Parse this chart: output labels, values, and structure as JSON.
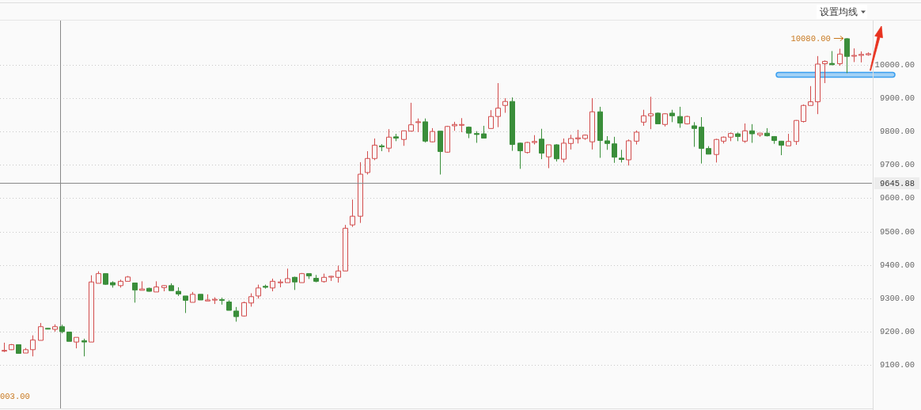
{
  "chart_data": {
    "type": "candlestick",
    "categories": [
      null,
      null,
      null,
      null,
      null,
      null,
      null,
      null,
      null,
      null,
      null,
      null,
      null,
      null,
      null,
      null,
      null,
      null,
      null,
      null,
      null,
      null,
      null,
      null,
      null,
      null,
      null,
      null,
      null,
      null,
      null,
      null,
      null,
      null,
      null,
      null,
      null,
      null,
      null,
      null,
      null,
      null,
      null,
      null,
      null,
      null,
      null,
      null,
      null,
      null,
      null,
      null,
      null,
      null,
      null,
      null,
      null,
      null,
      null,
      null,
      null,
      null,
      null,
      null,
      null,
      null,
      null,
      null,
      null,
      null,
      null,
      null,
      null,
      null,
      null,
      null,
      null,
      null,
      null,
      null,
      null,
      null,
      null,
      null,
      null,
      null,
      null,
      null,
      null,
      null,
      null,
      null,
      null,
      null,
      null,
      null,
      null,
      null,
      null,
      null,
      null,
      null,
      null,
      null,
      null,
      null,
      null,
      null,
      null,
      null,
      null,
      null,
      null,
      null,
      null,
      null,
      null,
      null,
      null,
      null
    ],
    "ohlc": [
      [
        9142,
        9167,
        9139,
        9144
      ],
      [
        9146,
        9163,
        9145,
        9161
      ],
      [
        9161,
        9162,
        9134,
        9135
      ],
      [
        9136,
        9151,
        9136,
        9146
      ],
      [
        9146,
        9189,
        9126,
        9175
      ],
      [
        9174,
        9226,
        9174,
        9215
      ],
      [
        9210,
        9211,
        9207,
        9208
      ],
      [
        9207,
        9222,
        9200,
        9215
      ],
      [
        9215,
        9221,
        9195,
        9200
      ],
      [
        9199,
        9199,
        9171,
        9171
      ],
      [
        9169,
        9183,
        9150,
        9183
      ],
      [
        9173,
        9179,
        9126,
        9169
      ],
      [
        9169,
        9369,
        9169,
        9349
      ],
      [
        9345,
        9381,
        9345,
        9374
      ],
      [
        9374,
        9374,
        9340,
        9342
      ],
      [
        9347,
        9351,
        9332,
        9340
      ],
      [
        9338,
        9356,
        9332,
        9351
      ],
      [
        9351,
        9367,
        9351,
        9364
      ],
      [
        9346,
        9346,
        9287,
        9325
      ],
      [
        9324,
        9351,
        9324,
        9328
      ],
      [
        9330,
        9332,
        9320,
        9321
      ],
      [
        9319,
        9351,
        9319,
        9334
      ],
      [
        9332,
        9339,
        9321,
        9338
      ],
      [
        9338,
        9345,
        9323,
        9323
      ],
      [
        9321,
        9333,
        9307,
        9313
      ],
      [
        9307,
        9307,
        9256,
        9294
      ],
      [
        9288,
        9319,
        9288,
        9312
      ],
      [
        9312,
        9312,
        9295,
        9295
      ],
      [
        9292,
        9312,
        9292,
        9295
      ],
      [
        9295,
        9303,
        9283,
        9297
      ],
      [
        9296,
        9302,
        9281,
        9294
      ],
      [
        9289,
        9294,
        9264,
        9264
      ],
      [
        9262,
        9274,
        9230,
        9245
      ],
      [
        9247,
        9290,
        9245,
        9287
      ],
      [
        9286,
        9315,
        9275,
        9305
      ],
      [
        9307,
        9341,
        9299,
        9331
      ],
      [
        9336,
        9341,
        9329,
        9333
      ],
      [
        9331,
        9359,
        9321,
        9351
      ],
      [
        9347,
        9357,
        9333,
        9349
      ],
      [
        9347,
        9389,
        9347,
        9359
      ],
      [
        9363,
        9365,
        9325,
        9349
      ],
      [
        9347,
        9376,
        9347,
        9374
      ],
      [
        9374,
        9374,
        9358,
        9367
      ],
      [
        9360,
        9370,
        9348,
        9351
      ],
      [
        9350,
        9374,
        9347,
        9363
      ],
      [
        9365,
        9367,
        9352,
        9366
      ],
      [
        9363,
        9398,
        9347,
        9382
      ],
      [
        9382,
        9520,
        9382,
        9510
      ],
      [
        9520,
        9596,
        9514,
        9546
      ],
      [
        9546,
        9708,
        9526,
        9672
      ],
      [
        9677,
        9741,
        9671,
        9719
      ],
      [
        9719,
        9779,
        9714,
        9759
      ],
      [
        9757,
        9762,
        9741,
        9754
      ],
      [
        9750,
        9807,
        9738,
        9783
      ],
      [
        9784,
        9793,
        9771,
        9780
      ],
      [
        9776,
        9802,
        9757,
        9802
      ],
      [
        9801,
        9886,
        9800,
        9820
      ],
      [
        9827,
        9839,
        9798,
        9829
      ],
      [
        9829,
        9839,
        9767,
        9771
      ],
      [
        9769,
        9810,
        9767,
        9800
      ],
      [
        9801,
        9801,
        9671,
        9740
      ],
      [
        9738,
        9817,
        9736,
        9815
      ],
      [
        9817,
        9829,
        9802,
        9821
      ],
      [
        9819,
        9840,
        9798,
        9821
      ],
      [
        9813,
        9815,
        9780,
        9795
      ],
      [
        9794,
        9801,
        9766,
        9791
      ],
      [
        9793,
        9817,
        9780,
        9780
      ],
      [
        9809,
        9864,
        9809,
        9845
      ],
      [
        9845,
        9945,
        9813,
        9870
      ],
      [
        9878,
        9900,
        9856,
        9890
      ],
      [
        9890,
        9902,
        9742,
        9761
      ],
      [
        9765,
        9767,
        9688,
        9742
      ],
      [
        9737,
        9769,
        9734,
        9767
      ],
      [
        9767,
        9789,
        9761,
        9770
      ],
      [
        9777,
        9808,
        9717,
        9735
      ],
      [
        9724,
        9760,
        9690,
        9760
      ],
      [
        9760,
        9762,
        9710,
        9718
      ],
      [
        9717,
        9779,
        9707,
        9765
      ],
      [
        9764,
        9790,
        9746,
        9779
      ],
      [
        9778,
        9805,
        9764,
        9781
      ],
      [
        9779,
        9791,
        9775,
        9789
      ],
      [
        9769,
        9900,
        9746,
        9859
      ],
      [
        9859,
        9874,
        9721,
        9773
      ],
      [
        9772,
        9786,
        9745,
        9764
      ],
      [
        9763,
        9784,
        9706,
        9723
      ],
      [
        9720,
        9745,
        9707,
        9716
      ],
      [
        9715,
        9776,
        9698,
        9772
      ],
      [
        9771,
        9803,
        9761,
        9798
      ],
      [
        9828,
        9865,
        9817,
        9847
      ],
      [
        9847,
        9904,
        9807,
        9853
      ],
      [
        9855,
        9857,
        9823,
        9823
      ],
      [
        9821,
        9855,
        9815,
        9853
      ],
      [
        9855,
        9865,
        9828,
        9847
      ],
      [
        9845,
        9874,
        9811,
        9825
      ],
      [
        9823,
        9847,
        9821,
        9845
      ],
      [
        9817,
        9828,
        9754,
        9809
      ],
      [
        9813,
        9843,
        9704,
        9749
      ],
      [
        9749,
        9756,
        9732,
        9732
      ],
      [
        9731,
        9778,
        9707,
        9776
      ],
      [
        9771,
        9785,
        9764,
        9783
      ],
      [
        9783,
        9797,
        9771,
        9794
      ],
      [
        9793,
        9797,
        9771,
        9785
      ],
      [
        9771,
        9824,
        9766,
        9802
      ],
      [
        9802,
        9822,
        9766,
        9793
      ],
      [
        9790,
        9795,
        9784,
        9795
      ],
      [
        9795,
        9810,
        9785,
        9787
      ],
      [
        9785,
        9786,
        9763,
        9773
      ],
      [
        9771,
        9772,
        9729,
        9759
      ],
      [
        9757,
        9793,
        9757,
        9770
      ],
      [
        9770,
        9834,
        9760,
        9833
      ],
      [
        9830,
        9881,
        9827,
        9878
      ],
      [
        9878,
        9936,
        9878,
        9889
      ],
      [
        9889,
        10026,
        9852,
        10002
      ],
      [
        10003,
        10013,
        9945,
        10010
      ],
      [
        10004,
        10041,
        9999,
        10000
      ],
      [
        10003,
        10048,
        9997,
        10032
      ],
      [
        10078,
        10080,
        9975,
        10025
      ],
      [
        10026,
        10049,
        10008,
        10028
      ],
      [
        10028,
        10040,
        10007,
        10031
      ],
      [
        10030,
        10037,
        10027,
        10033
      ]
    ],
    "colors": [
      "#d24b4b",
      "#d24b4b",
      "#3a8e3a",
      "#d24b4b",
      "#d24b4b",
      "#d24b4b",
      "#3a8e3a",
      "#d24b4b",
      "#3a8e3a",
      "#3a8e3a",
      "#d24b4b",
      "#3a8e3a",
      "#d24b4b",
      "#d24b4b",
      "#3a8e3a",
      "#3a8e3a",
      "#d24b4b",
      "#d24b4b",
      "#3a8e3a",
      "#d24b4b",
      "#3a8e3a",
      "#d24b4b",
      "#d24b4b",
      "#3a8e3a",
      "#3a8e3a",
      "#3a8e3a",
      "#d24b4b",
      "#3a8e3a",
      "#d24b4b",
      "#d24b4b",
      "#3a8e3a",
      "#3a8e3a",
      "#3a8e3a",
      "#d24b4b",
      "#d24b4b",
      "#d24b4b",
      "#3a8e3a",
      "#d24b4b",
      "#d24b4b",
      "#d24b4b",
      "#3a8e3a",
      "#d24b4b",
      "#3a8e3a",
      "#3a8e3a",
      "#d24b4b",
      "#d24b4b",
      "#d24b4b",
      "#d24b4b",
      "#d24b4b",
      "#d24b4b",
      "#d24b4b",
      "#d24b4b",
      "#3a8e3a",
      "#d24b4b",
      "#3a8e3a",
      "#d24b4b",
      "#d24b4b",
      "#d24b4b",
      "#3a8e3a",
      "#d24b4b",
      "#3a8e3a",
      "#d24b4b",
      "#d24b4b",
      "#d24b4b",
      "#3a8e3a",
      "#3a8e3a",
      "#3a8e3a",
      "#d24b4b",
      "#d24b4b",
      "#d24b4b",
      "#3a8e3a",
      "#3a8e3a",
      "#d24b4b",
      "#d24b4b",
      "#3a8e3a",
      "#d24b4b",
      "#3a8e3a",
      "#d24b4b",
      "#d24b4b",
      "#d24b4b",
      "#d24b4b",
      "#d24b4b",
      "#3a8e3a",
      "#3a8e3a",
      "#3a8e3a",
      "#3a8e3a",
      "#d24b4b",
      "#d24b4b",
      "#d24b4b",
      "#d24b4b",
      "#3a8e3a",
      "#d24b4b",
      "#3a8e3a",
      "#3a8e3a",
      "#d24b4b",
      "#3a8e3a",
      "#3a8e3a",
      "#3a8e3a",
      "#d24b4b",
      "#d24b4b",
      "#d24b4b",
      "#3a8e3a",
      "#d24b4b",
      "#3a8e3a",
      "#d24b4b",
      "#3a8e3a",
      "#3a8e3a",
      "#3a8e3a",
      "#d24b4b",
      "#d24b4b",
      "#d24b4b",
      "#d24b4b",
      "#d24b4b",
      "#d24b4b",
      "#3a8e3a",
      "#d24b4b",
      "#3a8e3a",
      "#d24b4b",
      "#d24b4b",
      "#d24b4b"
    ],
    "ylim": [
      8970,
      10130
    ],
    "yticks": [
      {
        "value": 9100,
        "label": "9100.00"
      },
      {
        "value": 9200,
        "label": "9200.00"
      },
      {
        "value": 9300,
        "label": "9300.00"
      },
      {
        "value": 9400,
        "label": "9400.00"
      },
      {
        "value": 9500,
        "label": "9500.00"
      },
      {
        "value": 9600,
        "label": "9600.00"
      },
      {
        "value": 9700,
        "label": "9700.00"
      },
      {
        "value": 9800,
        "label": "9800.00"
      },
      {
        "value": 9900,
        "label": "9900.00"
      },
      {
        "value": 10000,
        "label": "10000.00"
      }
    ],
    "grid": "y",
    "tick_labels": "y",
    "ref_lines": [
      {
        "axis": "y",
        "value": 9645.88,
        "label": "9645.88",
        "color": "#888888"
      }
    ],
    "bands": [
      {
        "axis": "y",
        "from": 9963,
        "to": 9977,
        "color": "#3a9ff0"
      }
    ],
    "annotations": [
      "设置均线",
      "003.00",
      "10080.00"
    ]
  }
}
